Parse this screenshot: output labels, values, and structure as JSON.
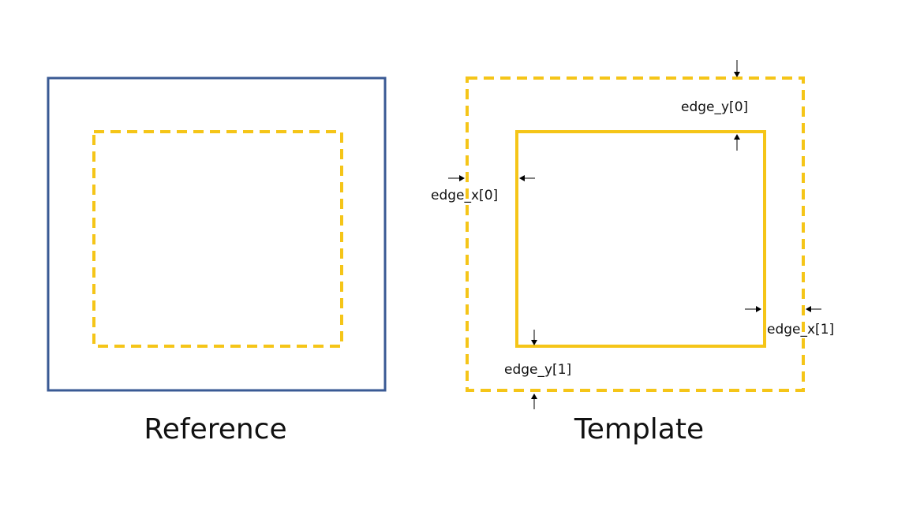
{
  "colors": {
    "reference_border": "#3a5a94",
    "yellow": "#f5c518",
    "text": "#111111",
    "arrow": "#000000"
  },
  "reference": {
    "caption": "Reference"
  },
  "template": {
    "caption": "Template",
    "labels": {
      "edge_y0": "edge_y[0]",
      "edge_x0": "edge_x[0]",
      "edge_x1": "edge_x[1]",
      "edge_y1": "edge_y[1]"
    }
  }
}
